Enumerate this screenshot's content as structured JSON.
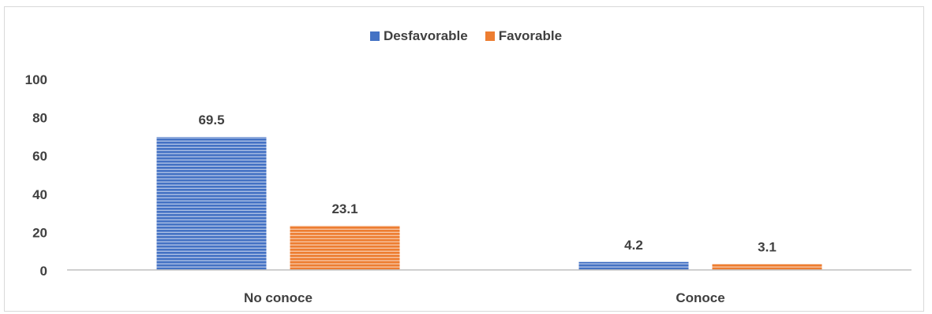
{
  "chart_data": {
    "type": "bar",
    "categories": [
      "No conoce",
      "Conoce"
    ],
    "series": [
      {
        "name": "Desfavorable",
        "values": [
          69.5,
          4.2
        ],
        "color": "#4472C4"
      },
      {
        "name": "Favorable",
        "values": [
          23.1,
          3.1
        ],
        "color": "#ED7D31"
      }
    ],
    "data_labels": [
      [
        "69.5",
        "4.2"
      ],
      [
        "23.1",
        "3.1"
      ]
    ],
    "ylim": [
      0,
      100
    ],
    "yticks": [
      "0",
      "20",
      "40",
      "60",
      "80",
      "100"
    ],
    "grid": false,
    "legend_position": "top-center",
    "fill_pattern": "horizontal-stripes"
  }
}
